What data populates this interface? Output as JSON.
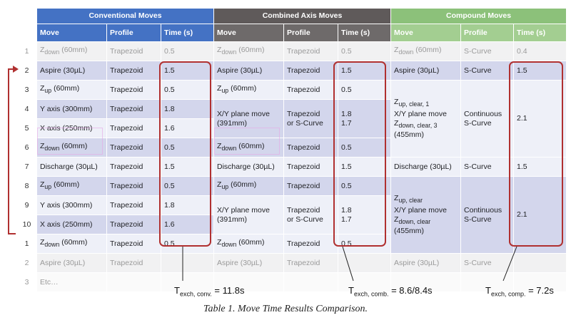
{
  "groups": {
    "conventional": "Conventional Moves",
    "combined": "Combined Axis Moves",
    "compound": "Compound Moves"
  },
  "headers": {
    "move": "Move",
    "profile": "Profile",
    "time": "Time (s)"
  },
  "row_numbers": [
    "1",
    "2",
    "3",
    "4",
    "5",
    "6",
    "7",
    "8",
    "9",
    "10",
    "1",
    "2",
    "3"
  ],
  "conventional": [
    {
      "move": "Z",
      "move_sub": "down",
      "move_rest": " (60mm)",
      "profile": "Trapezoid",
      "time": "0.5"
    },
    {
      "move": "Aspire (30µL)",
      "profile": "Trapezoid",
      "time": "1.5"
    },
    {
      "move": "Z",
      "move_sub": "up",
      "move_rest": " (60mm)",
      "profile": "Trapezoid",
      "time": "0.5"
    },
    {
      "move": "Y axis (300mm)",
      "profile": "Trapezoid",
      "time": "1.8"
    },
    {
      "move": "X axis (250mm)",
      "profile": "Trapezoid",
      "time": "1.6"
    },
    {
      "move": "Z",
      "move_sub": "down",
      "move_rest": " (60mm)",
      "profile": "Trapezoid",
      "time": "0.5"
    },
    {
      "move": "Discharge (30µL)",
      "profile": "Trapezoid",
      "time": "1.5"
    },
    {
      "move": "Z",
      "move_sub": "up",
      "move_rest": " (60mm)",
      "profile": "Trapezoid",
      "time": "0.5"
    },
    {
      "move": "Y axis (300mm)",
      "profile": "Trapezoid",
      "time": "1.8"
    },
    {
      "move": "X axis (250mm)",
      "profile": "Trapezoid",
      "time": "1.6"
    },
    {
      "move": "Z",
      "move_sub": "down",
      "move_rest": " (60mm)",
      "profile": "Trapezoid",
      "time": "0.5"
    },
    {
      "move": "Aspire (30µL)",
      "profile": "Trapezoid",
      "time": ""
    },
    {
      "move": "Etc…",
      "profile": "",
      "time": ""
    }
  ],
  "combined": {
    "z_down": "Z",
    "sub_down": "down",
    "z_up": "Z",
    "sub_up": "up",
    "mm60": " (60mm)",
    "aspire": "Aspire (30µL)",
    "discharge": "Discharge (30µL)",
    "trapezoid": "Trapezoid",
    "t05": "0.5",
    "t15": "1.5",
    "xy_move_1": "X/Y plane move",
    "xy_move_2": "(391mm)",
    "xy_profile_1": "Trapezoid",
    "xy_profile_2": "or S-Curve",
    "xy_time_1": "1.8",
    "xy_time_2": "1.7"
  },
  "compound": {
    "z_down": "Z",
    "sub_down": "down",
    "mm60": " (60mm)",
    "scurve": "S-Curve",
    "t04": "0.4",
    "t15": "1.5",
    "t21": "2.1",
    "aspire": "Aspire (30µL)",
    "discharge": "Discharge (30µL)",
    "block1_line1_sub": "up, clear, 1",
    "block1_line2": "X/Y plane move",
    "block1_line3_sub": "down, clear, 3",
    "block1_line4": "(455mm)",
    "block2_line1_sub": "up, clear",
    "block2_line2": "X/Y plane move",
    "block2_line3_sub": "down, clear",
    "block2_line4": "(455mm)",
    "continuous_1": "Continuous",
    "continuous_2": "S-Curve"
  },
  "totals": {
    "conv_T": "T",
    "conv_sub": "exch, conv.",
    "conv_val": " = 11.8s",
    "comb_T": "T",
    "comb_sub": "exch, comb.",
    "comb_val": " = 8.6/8.4s",
    "comp_T": "T",
    "comp_sub": "exch, comp.",
    "comp_val": " = 7.2s"
  },
  "caption": "Table 1.  Move Time Results Comparison.",
  "colors": {
    "conventional": "#4472c4",
    "combined": "#5f5a5a",
    "compound": "#8cc17a",
    "callout": "#b03030",
    "band_light": "#eef0f8",
    "band_dark": "#d3d6ec"
  }
}
